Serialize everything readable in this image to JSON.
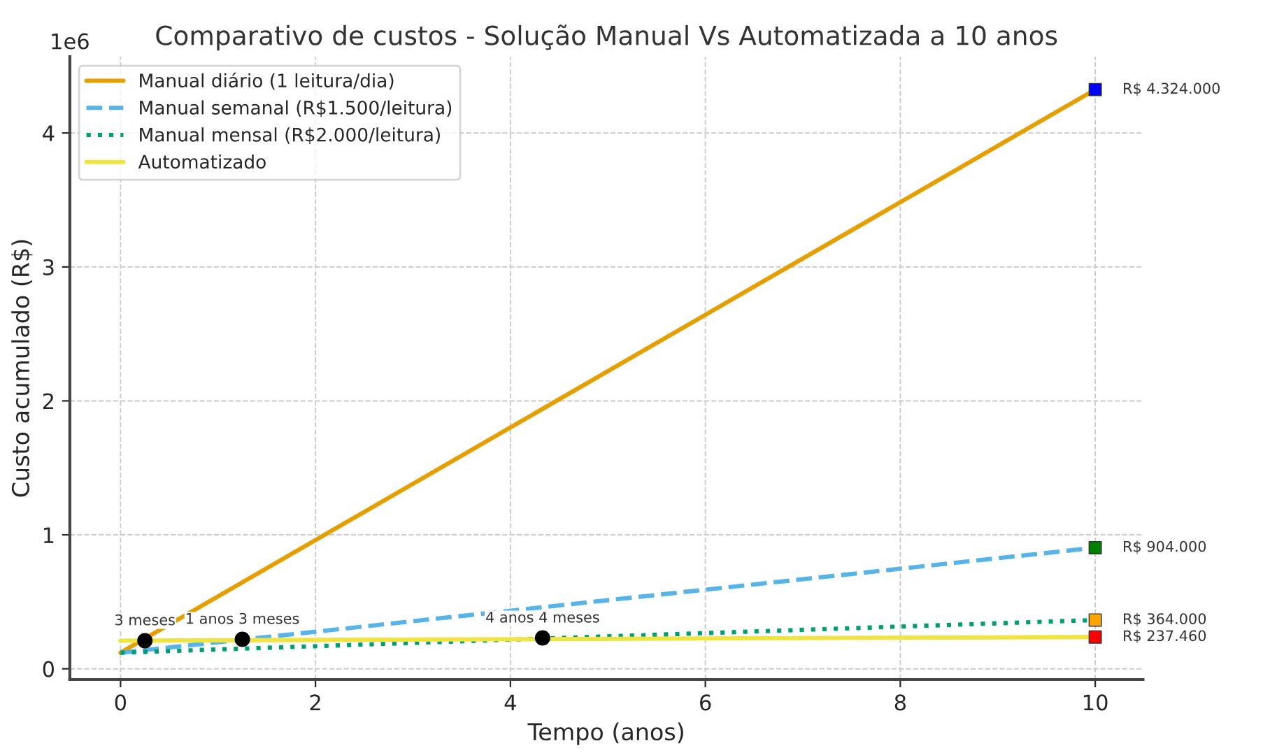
{
  "chart_data": {
    "type": "line",
    "title": "Comparativo de custos - Solução Manual Vs Automatizada a 10 anos",
    "xlabel": "Tempo (anos)",
    "ylabel": "Custo acumulado (R$)",
    "x": [
      0,
      10
    ],
    "series": [
      {
        "name": "Manual diário (1 leitura/dia)",
        "color": "#e69f00",
        "values": [
          0.12,
          4.324
        ],
        "line_style": "solid"
      },
      {
        "name": "Manual semanal (R$1.500/leitura)",
        "color": "#56b4e9",
        "values": [
          0.12,
          0.904
        ],
        "line_style": "dashed"
      },
      {
        "name": "Manual mensal (R$2.000/leitura)",
        "color": "#009e73",
        "values": [
          0.12,
          0.364
        ],
        "line_style": "dotted"
      },
      {
        "name": "Automatizado",
        "color": "#f0e442",
        "values": [
          0.21,
          0.23746
        ],
        "line_style": "solid"
      },
      {
        "type": "scatter",
        "marker": "circle",
        "color": "#000000",
        "x": [
          0.25,
          1.25,
          4.33
        ],
        "values": [
          0.21,
          0.22,
          0.23
        ]
      },
      {
        "type": "scatter",
        "marker": "square",
        "x": [
          10,
          10,
          10,
          10
        ],
        "values": [
          4.324,
          0.904,
          0.364,
          0.23746
        ],
        "colors": [
          "#0000ff",
          "#008000",
          "#ffa500",
          "#ff0000"
        ],
        "value_labels": [
          "R$ 4.324.000",
          "R$ 904.000",
          "R$ 364.000",
          "R$ 237.460"
        ]
      }
    ],
    "annotations": [
      {
        "text": "3 meses",
        "x": 0.25,
        "y": 0.21
      },
      {
        "text": "1 anos 3 meses",
        "x": 1.25,
        "y": 0.22
      },
      {
        "text": "4 anos 4 meses",
        "x": 4.33,
        "y": 0.23
      },
      "1e6"
    ],
    "xlim": [
      -0.52,
      10.49
    ],
    "xticks": [
      0,
      2,
      4,
      6,
      8,
      10
    ],
    "ylim": [
      -0.08,
      4.57
    ],
    "yticks": [
      0,
      1,
      2,
      3,
      4
    ],
    "grid": true,
    "legend": "top left"
  }
}
